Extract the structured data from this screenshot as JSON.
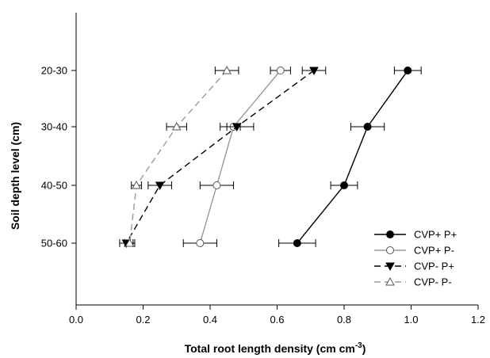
{
  "chart_data": {
    "type": "line",
    "title": "",
    "xlabel": "Total root length density (cm cm",
    "xlabel_superscript": "-3",
    "xlabel_suffix": ")",
    "ylabel": "Soil depth level (cm)",
    "xlim": [
      0.0,
      1.2
    ],
    "x_ticks": [
      0.0,
      0.2,
      0.4,
      0.6,
      0.8,
      1.0,
      1.2
    ],
    "x_tick_labels": [
      "0.0",
      "0.2",
      "0.4",
      "0.6",
      "0.8",
      "1.0",
      "1.2"
    ],
    "categories": [
      "20-30",
      "30-40",
      "40-50",
      "50-60"
    ],
    "grid": false,
    "legend_position": "bottom-right",
    "series": [
      {
        "name": "CVP+ P+",
        "color": "#000000",
        "dash": "solid",
        "marker": "circle-filled",
        "values": [
          0.99,
          0.87,
          0.8,
          0.66
        ],
        "errors": [
          0.04,
          0.05,
          0.04,
          0.055
        ]
      },
      {
        "name": "CVP+ P-",
        "color": "#9a9a9a",
        "dash": "solid",
        "marker": "circle-open",
        "values": [
          0.61,
          0.47,
          0.42,
          0.37
        ],
        "errors": [
          0.03,
          0.02,
          0.05,
          0.05
        ]
      },
      {
        "name": "CVP- P+",
        "color": "#000000",
        "dash": "dashed",
        "marker": "triangle-down-filled",
        "values": [
          0.71,
          0.48,
          0.25,
          0.15
        ],
        "errors": [
          0.035,
          0.05,
          0.035,
          0.02
        ]
      },
      {
        "name": "CVP- P-",
        "color": "#9a9a9a",
        "dash": "dashed",
        "marker": "triangle-up-open",
        "values": [
          0.45,
          0.3,
          0.18,
          0.16
        ],
        "errors": [
          0.035,
          0.03,
          0.015,
          0.015
        ]
      }
    ]
  }
}
